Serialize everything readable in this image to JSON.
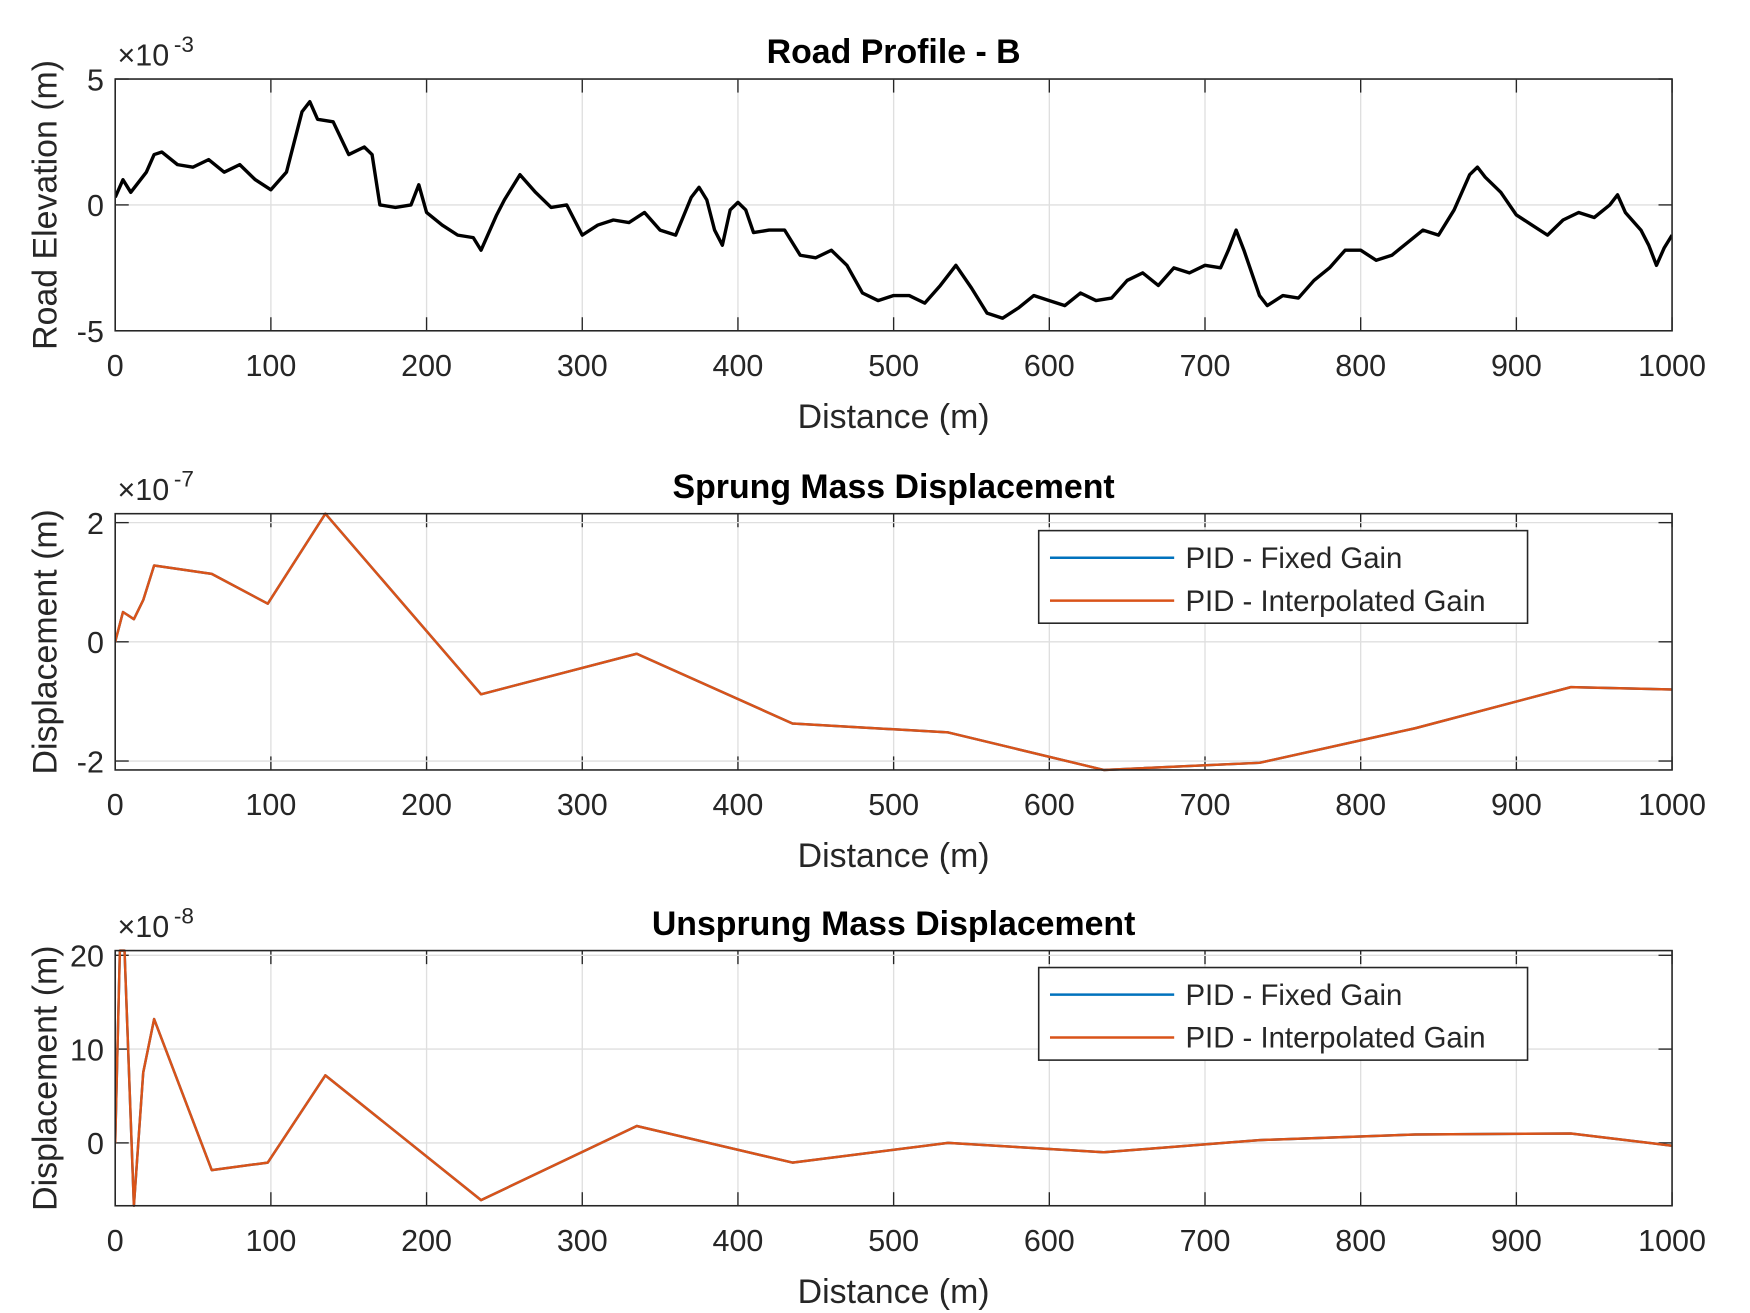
{
  "chart_data": [
    {
      "type": "line",
      "title": "Road Profile - B",
      "xlabel": "Distance (m)",
      "ylabel": "Road Elevation (m)",
      "y_exponent": {
        "base": "×10",
        "power": "-3"
      },
      "x": [
        0,
        5,
        10,
        20,
        25,
        30,
        40,
        50,
        60,
        70,
        80,
        90,
        100,
        110,
        115,
        120,
        125,
        130,
        140,
        150,
        160,
        165,
        170,
        180,
        190,
        195,
        200,
        210,
        220,
        230,
        235,
        245,
        250,
        260,
        270,
        280,
        290,
        300,
        310,
        320,
        330,
        340,
        350,
        360,
        370,
        375,
        380,
        385,
        390,
        395,
        400,
        405,
        410,
        420,
        430,
        440,
        450,
        460,
        470,
        480,
        490,
        500,
        510,
        520,
        530,
        540,
        550,
        560,
        570,
        580,
        590,
        600,
        610,
        620,
        630,
        640,
        650,
        660,
        670,
        680,
        690,
        700,
        710,
        715,
        720,
        725,
        735,
        740,
        750,
        760,
        770,
        780,
        790,
        800,
        810,
        820,
        830,
        840,
        850,
        860,
        870,
        875,
        880,
        890,
        900,
        910,
        920,
        930,
        940,
        950,
        960,
        965,
        970,
        980,
        985,
        990,
        995,
        1000
      ],
      "values": [
        0.3,
        1.0,
        0.5,
        1.3,
        2.0,
        2.1,
        1.6,
        1.5,
        1.8,
        1.3,
        1.6,
        1.0,
        0.6,
        1.3,
        2.5,
        3.7,
        4.1,
        3.4,
        3.3,
        2.0,
        2.3,
        2.0,
        0.0,
        -0.1,
        0.0,
        0.8,
        -0.3,
        -0.8,
        -1.2,
        -1.3,
        -1.8,
        -0.4,
        0.2,
        1.2,
        0.5,
        -0.1,
        0.0,
        -1.2,
        -0.8,
        -0.6,
        -0.7,
        -0.3,
        -1.0,
        -1.2,
        0.3,
        0.7,
        0.2,
        -1.0,
        -1.6,
        -0.2,
        0.1,
        -0.2,
        -1.1,
        -1.0,
        -1.0,
        -2.0,
        -2.1,
        -1.8,
        -2.4,
        -3.5,
        -3.8,
        -3.6,
        -3.6,
        -3.9,
        -3.2,
        -2.4,
        -3.3,
        -4.3,
        -4.5,
        -4.1,
        -3.6,
        -3.8,
        -4.0,
        -3.5,
        -3.8,
        -3.7,
        -3.0,
        -2.7,
        -3.2,
        -2.5,
        -2.7,
        -2.4,
        -2.5,
        -1.8,
        -1.0,
        -1.8,
        -3.6,
        -4.0,
        -3.6,
        -3.7,
        -3.0,
        -2.5,
        -1.8,
        -1.8,
        -2.2,
        -2.0,
        -1.5,
        -1.0,
        -1.2,
        -0.2,
        1.2,
        1.5,
        1.1,
        0.5,
        -0.4,
        -0.8,
        -1.2,
        -0.6,
        -0.3,
        -0.5,
        0.0,
        0.4,
        -0.3,
        -1.0,
        -1.6,
        -2.4,
        -1.7,
        -1.2
      ],
      "color": "#000000",
      "xlim": [
        0,
        1000
      ],
      "xticks": [
        0,
        100,
        200,
        300,
        400,
        500,
        600,
        700,
        800,
        900,
        1000
      ],
      "ylim": [
        -5,
        5
      ],
      "yticks": [
        -5,
        0,
        5
      ],
      "grid": true
    },
    {
      "type": "line",
      "title": "Sprung Mass Displacement",
      "xlabel": "Distance (m)",
      "ylabel": "Displacement (m)",
      "y_exponent": {
        "base": "×10",
        "power": "-7"
      },
      "x": [
        0,
        5,
        12,
        18,
        25,
        62,
        98,
        135,
        235,
        335,
        435,
        535,
        635,
        735,
        835,
        935,
        1000
      ],
      "series": [
        {
          "name": "PID - Fixed Gain",
          "color": "#0072BD",
          "values": [
            0,
            0.5,
            0.38,
            0.7,
            1.28,
            1.14,
            0.64,
            2.15,
            -0.88,
            -0.2,
            -1.37,
            -1.52,
            -2.15,
            -2.03,
            -1.45,
            -0.76,
            -0.8
          ]
        },
        {
          "name": "PID - Interpolated Gain",
          "color": "#D95319",
          "values": [
            0,
            0.5,
            0.38,
            0.7,
            1.28,
            1.14,
            0.64,
            2.15,
            -0.88,
            -0.2,
            -1.37,
            -1.52,
            -2.15,
            -2.03,
            -1.45,
            -0.76,
            -0.8
          ]
        }
      ],
      "xlim": [
        0,
        1000
      ],
      "xticks": [
        0,
        100,
        200,
        300,
        400,
        500,
        600,
        700,
        800,
        900,
        1000
      ],
      "ylim": [
        -2.15,
        2.15
      ],
      "yticks": [
        -2,
        0,
        2
      ],
      "grid": true,
      "legend": "upper right"
    },
    {
      "type": "line",
      "title": "Unsprung Mass Displacement",
      "xlabel": "Distance (m)",
      "ylabel": "Displacement (m)",
      "y_exponent": {
        "base": "×10",
        "power": "-8"
      },
      "x": [
        0,
        3,
        6,
        12,
        18,
        25,
        62,
        98,
        135,
        235,
        335,
        435,
        535,
        635,
        735,
        835,
        935,
        1000
      ],
      "series": [
        {
          "name": "PID - Fixed Gain",
          "color": "#0072BD",
          "values": [
            0,
            20.5,
            20.5,
            -6.7,
            7.5,
            13.2,
            -2.9,
            -2.1,
            7.2,
            -6.1,
            1.8,
            -2.1,
            0,
            -1.0,
            0.3,
            0.9,
            1.0,
            -0.3
          ]
        },
        {
          "name": "PID - Interpolated Gain",
          "color": "#D95319",
          "values": [
            0,
            20.5,
            20.5,
            -6.7,
            7.5,
            13.2,
            -2.9,
            -2.1,
            7.2,
            -6.1,
            1.8,
            -2.1,
            0,
            -1.0,
            0.3,
            0.9,
            1.0,
            -0.3
          ]
        }
      ],
      "xlim": [
        0,
        1000
      ],
      "xticks": [
        0,
        100,
        200,
        300,
        400,
        500,
        600,
        700,
        800,
        900,
        1000
      ],
      "ylim": [
        -6.7,
        20.5
      ],
      "yticks": [
        0,
        10,
        20
      ],
      "grid": true,
      "legend": "upper right"
    }
  ]
}
